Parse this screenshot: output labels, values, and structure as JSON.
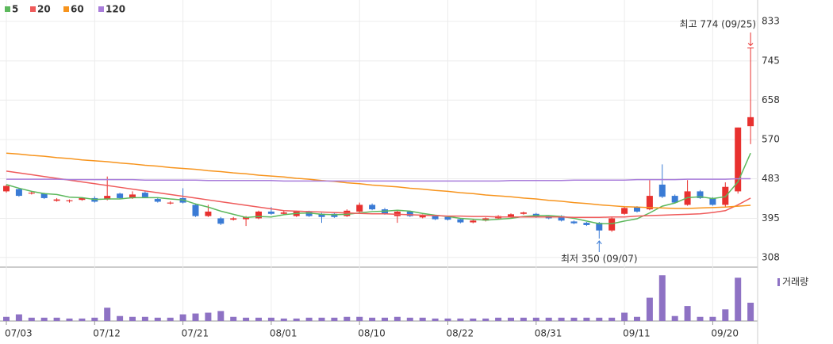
{
  "chart_data": {
    "type": "candlestick",
    "categories": [
      "07/03",
      null,
      null,
      null,
      null,
      null,
      null,
      "07/12",
      null,
      null,
      null,
      null,
      null,
      null,
      "07/21",
      null,
      null,
      null,
      null,
      null,
      null,
      "08/01",
      null,
      null,
      null,
      null,
      null,
      null,
      "08/10",
      null,
      null,
      null,
      null,
      null,
      null,
      "08/22",
      null,
      null,
      null,
      null,
      null,
      null,
      "08/31",
      null,
      null,
      null,
      null,
      null,
      null,
      "09/11",
      null,
      null,
      null,
      null,
      null,
      null,
      "09/20",
      null,
      null,
      null
    ],
    "open": [
      455,
      460,
      450,
      450,
      434,
      433,
      436,
      440,
      437,
      450,
      440,
      452,
      438,
      428,
      440,
      425,
      400,
      395,
      392,
      393,
      395,
      410,
      405,
      400,
      410,
      405,
      405,
      400,
      410,
      425,
      415,
      400,
      410,
      397,
      400,
      398,
      393,
      386,
      390,
      395,
      398,
      405,
      405,
      400,
      400,
      388,
      385,
      385,
      368,
      405,
      420,
      415,
      470,
      445,
      425,
      455,
      440,
      425,
      455,
      600
    ],
    "high": [
      470,
      463,
      455,
      452,
      440,
      437,
      442,
      444,
      488,
      452,
      455,
      455,
      440,
      433,
      462,
      428,
      425,
      398,
      398,
      400,
      412,
      420,
      412,
      412,
      412,
      407,
      408,
      415,
      430,
      428,
      418,
      412,
      412,
      404,
      402,
      400,
      395,
      392,
      397,
      402,
      406,
      410,
      407,
      402,
      402,
      390,
      387,
      387,
      398,
      420,
      422,
      480,
      515,
      448,
      480,
      458,
      442,
      475,
      597,
      774
    ],
    "low": [
      452,
      443,
      448,
      438,
      432,
      430,
      434,
      430,
      435,
      438,
      438,
      440,
      430,
      426,
      428,
      398,
      398,
      380,
      390,
      378,
      393,
      403,
      402,
      398,
      398,
      385,
      396,
      398,
      408,
      413,
      403,
      385,
      398,
      395,
      391,
      390,
      384,
      384,
      388,
      393,
      396,
      403,
      396,
      393,
      388,
      382,
      378,
      350,
      365,
      403,
      408,
      413,
      440,
      428,
      423,
      438,
      423,
      420,
      450,
      560
    ],
    "close": [
      467,
      445,
      452,
      440,
      437,
      435,
      440,
      432,
      445,
      440,
      448,
      442,
      432,
      430,
      430,
      400,
      410,
      383,
      395,
      398,
      410,
      405,
      408,
      410,
      400,
      398,
      398,
      412,
      425,
      415,
      405,
      410,
      400,
      402,
      393,
      392,
      386,
      390,
      395,
      400,
      404,
      408,
      398,
      395,
      390,
      384,
      380,
      368,
      395,
      418,
      410,
      445,
      443,
      430,
      455,
      440,
      425,
      465,
      597,
      620
    ],
    "up_color": "#e8312f",
    "down_color": "#3a7bd5",
    "series": [
      {
        "name": "5",
        "color": "#5cb85c",
        "values": [
          470,
          462,
          455,
          450,
          448,
          442,
          441,
          437,
          438,
          438,
          441,
          441,
          441,
          438,
          436,
          427,
          420,
          411,
          404,
          397,
          399,
          398,
          403,
          406,
          407,
          404,
          403,
          404,
          407,
          410,
          411,
          413,
          411,
          406,
          402,
          399,
          395,
          393,
          391,
          393,
          395,
          399,
          401,
          401,
          399,
          395,
          389,
          383,
          383,
          389,
          394,
          407,
          422,
          429,
          441,
          443,
          439,
          443,
          476,
          540
        ]
      },
      {
        "name": "20",
        "color": "#ef5b5b",
        "values": [
          500,
          496,
          492,
          488,
          484,
          480,
          476,
          472,
          468,
          464,
          460,
          456,
          452,
          448,
          444,
          440,
          436,
          432,
          428,
          424,
          420,
          416,
          412,
          411,
          410,
          409,
          408,
          407,
          406,
          405,
          405,
          404,
          403,
          402,
          401,
          400,
          400,
          399,
          399,
          398,
          398,
          398,
          398,
          398,
          398,
          397,
          397,
          397,
          398,
          398,
          400,
          401,
          402,
          403,
          404,
          405,
          408,
          412,
          425,
          440
        ]
      },
      {
        "name": "60",
        "color": "#f7941d",
        "values": [
          540,
          538,
          535,
          533,
          530,
          528,
          525,
          523,
          521,
          518,
          516,
          513,
          511,
          508,
          506,
          504,
          501,
          499,
          496,
          494,
          491,
          489,
          487,
          484,
          482,
          479,
          477,
          474,
          472,
          469,
          467,
          465,
          462,
          460,
          457,
          455,
          452,
          450,
          447,
          445,
          443,
          440,
          438,
          435,
          433,
          430,
          428,
          425,
          423,
          421,
          420,
          419,
          418,
          417,
          417,
          418,
          419,
          420,
          422,
          424
        ]
      },
      {
        "name": "120",
        "color": "#a97ddb",
        "values": [
          482,
          482,
          482,
          482,
          482,
          481,
          481,
          481,
          481,
          481,
          481,
          480,
          480,
          480,
          480,
          480,
          479,
          479,
          479,
          479,
          479,
          479,
          478,
          478,
          478,
          478,
          478,
          478,
          478,
          478,
          478,
          478,
          478,
          478,
          478,
          478,
          478,
          478,
          478,
          478,
          479,
          479,
          479,
          479,
          479,
          480,
          480,
          480,
          480,
          480,
          481,
          481,
          481,
          481,
          482,
          482,
          482,
          482,
          483,
          483
        ]
      }
    ],
    "ylim": [
      290,
      863
    ],
    "yticks": [
      308,
      395,
      483,
      570,
      658,
      745,
      833
    ],
    "grid": true,
    "volume": {
      "name": "거래량",
      "color": "#8e72c4",
      "ylim": [
        0,
        60
      ],
      "values": [
        5,
        8,
        4,
        4,
        4,
        3,
        3,
        4,
        16,
        6,
        5,
        5,
        4,
        4,
        8,
        9,
        10,
        12,
        5,
        4,
        4,
        4,
        3,
        3,
        4,
        4,
        4,
        5,
        5,
        4,
        4,
        5,
        4,
        4,
        3,
        3,
        3,
        3,
        3,
        4,
        4,
        4,
        4,
        4,
        4,
        4,
        4,
        4,
        4,
        10,
        5,
        28,
        55,
        6,
        18,
        5,
        5,
        14,
        52,
        22
      ]
    },
    "annotations": {
      "high": "최고 774 (09/25)",
      "low": "최저 350 (09/07)"
    }
  }
}
